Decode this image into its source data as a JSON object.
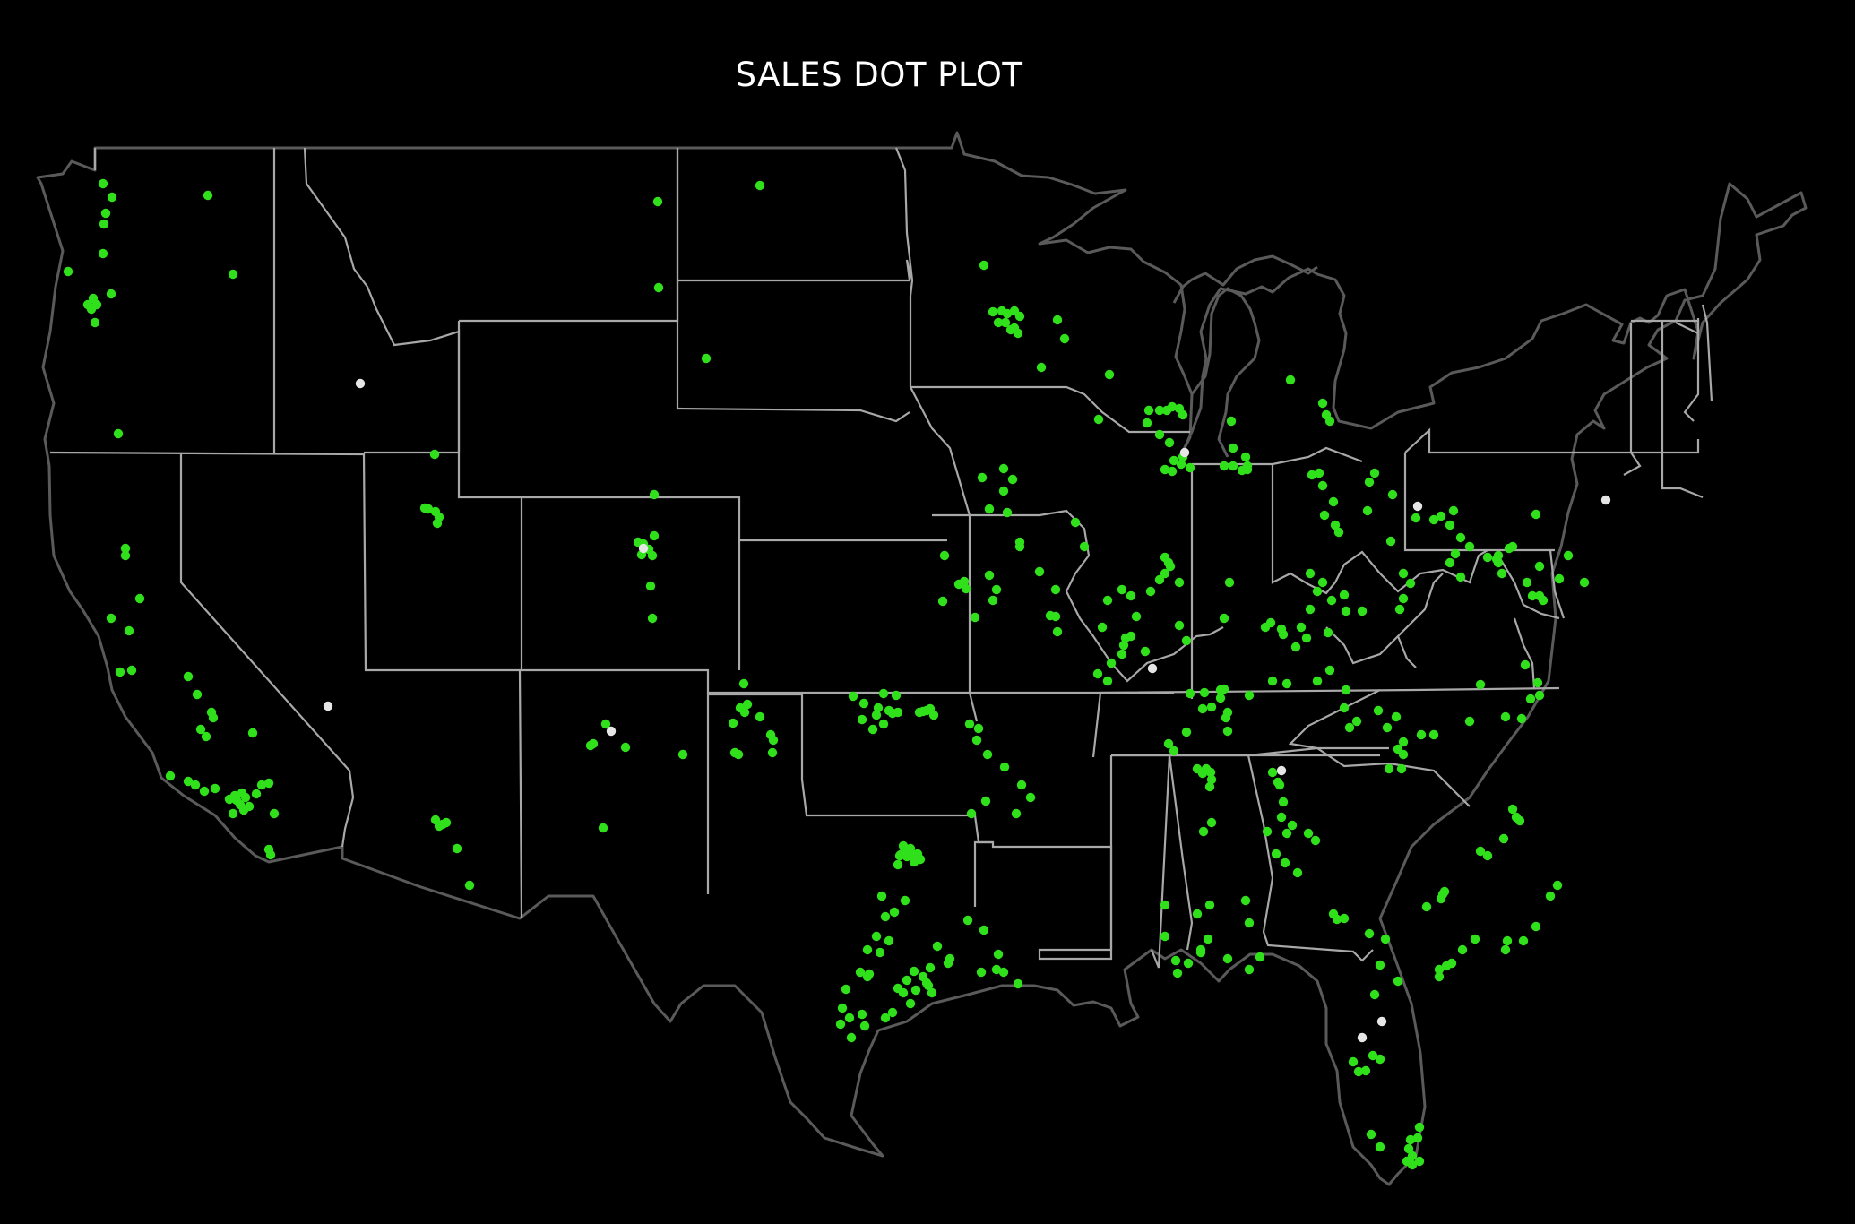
{
  "title": "SALES DOT PLOT",
  "colors": {
    "background": "#000000",
    "sale_dot": "#2fe01a",
    "highlight_dot": "#e6e6e6",
    "state_border": "#a8a8a8",
    "coastline": "#5a5a5a"
  }
}
